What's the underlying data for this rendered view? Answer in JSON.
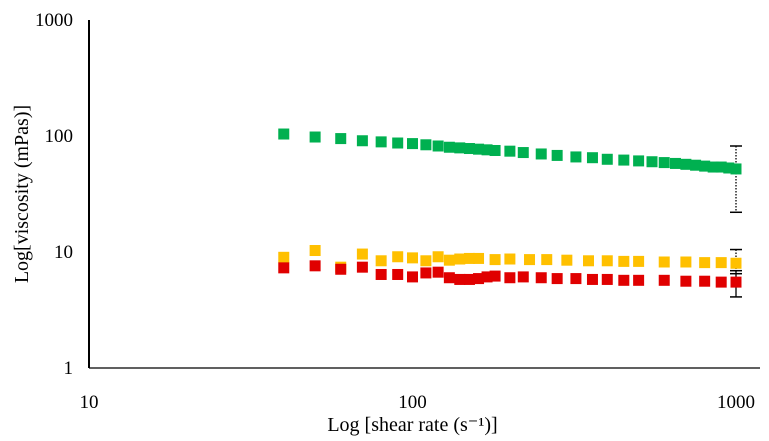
{
  "chart_data": {
    "type": "scatter",
    "title": "",
    "xlabel": "Log [shear rate (s⁻¹)]",
    "ylabel": "Log[viscosity (mPas)]",
    "xscale": "log",
    "yscale": "log",
    "xlim": [
      10,
      1000
    ],
    "ylim": [
      1,
      1000
    ],
    "xticks": [
      10,
      100,
      1000
    ],
    "xtick_labels": [
      "10",
      "100",
      "1000"
    ],
    "yticks": [
      1,
      10,
      100,
      1000
    ],
    "ytick_labels": [
      "1",
      "10",
      "100",
      "1000"
    ],
    "grid": false,
    "legend": "none",
    "series": [
      {
        "color": "#00b050",
        "points": [
          [
            40,
            104
          ],
          [
            50,
            98
          ],
          [
            60,
            95
          ],
          [
            70,
            91
          ],
          [
            80,
            89
          ],
          [
            90,
            87
          ],
          [
            100,
            86
          ],
          [
            110,
            84
          ],
          [
            120,
            82
          ],
          [
            130,
            80
          ],
          [
            140,
            79
          ],
          [
            150,
            78
          ],
          [
            160,
            77
          ],
          [
            170,
            76
          ],
          [
            180,
            75
          ],
          [
            200,
            74
          ],
          [
            220,
            72
          ],
          [
            250,
            70
          ],
          [
            280,
            68
          ],
          [
            320,
            66
          ],
          [
            360,
            65
          ],
          [
            400,
            63
          ],
          [
            450,
            62
          ],
          [
            500,
            61
          ],
          [
            550,
            60
          ],
          [
            600,
            59
          ],
          [
            650,
            58
          ],
          [
            700,
            57
          ],
          [
            750,
            56
          ],
          [
            800,
            55
          ],
          [
            850,
            54
          ],
          [
            900,
            54
          ],
          [
            950,
            53
          ],
          [
            1000,
            52
          ]
        ],
        "error_bars": [
          {
            "x": 1000,
            "low": 22,
            "high": 82,
            "style": "dotted"
          }
        ]
      },
      {
        "color": "#ffc000",
        "points": [
          [
            40,
            9.0
          ],
          [
            50,
            10.3
          ],
          [
            60,
            7.4
          ],
          [
            70,
            9.6
          ],
          [
            80,
            8.4
          ],
          [
            90,
            9.1
          ],
          [
            100,
            8.9
          ],
          [
            110,
            8.4
          ],
          [
            120,
            9.1
          ],
          [
            130,
            8.5
          ],
          [
            140,
            8.7
          ],
          [
            150,
            8.8
          ],
          [
            160,
            8.8
          ],
          [
            180,
            8.6
          ],
          [
            200,
            8.7
          ],
          [
            230,
            8.6
          ],
          [
            260,
            8.6
          ],
          [
            300,
            8.5
          ],
          [
            350,
            8.4
          ],
          [
            400,
            8.4
          ],
          [
            450,
            8.3
          ],
          [
            500,
            8.3
          ],
          [
            600,
            8.2
          ],
          [
            700,
            8.2
          ],
          [
            800,
            8.1
          ],
          [
            900,
            8.1
          ],
          [
            1000,
            8.0
          ]
        ],
        "error_bars": [
          {
            "x": 1000,
            "low": 6.5,
            "high": 10.5,
            "style": "dotted"
          }
        ]
      },
      {
        "color": "#e00000",
        "points": [
          [
            40,
            7.3
          ],
          [
            50,
            7.6
          ],
          [
            60,
            7.1
          ],
          [
            70,
            7.4
          ],
          [
            80,
            6.4
          ],
          [
            90,
            6.4
          ],
          [
            100,
            6.1
          ],
          [
            110,
            6.6
          ],
          [
            120,
            6.7
          ],
          [
            130,
            6.0
          ],
          [
            140,
            5.8
          ],
          [
            150,
            5.8
          ],
          [
            160,
            5.9
          ],
          [
            170,
            6.1
          ],
          [
            180,
            6.2
          ],
          [
            200,
            6.0
          ],
          [
            220,
            6.1
          ],
          [
            250,
            6.0
          ],
          [
            280,
            5.9
          ],
          [
            320,
            5.9
          ],
          [
            360,
            5.8
          ],
          [
            400,
            5.8
          ],
          [
            450,
            5.7
          ],
          [
            500,
            5.7
          ],
          [
            600,
            5.7
          ],
          [
            700,
            5.6
          ],
          [
            800,
            5.6
          ],
          [
            900,
            5.5
          ],
          [
            1000,
            5.5
          ]
        ],
        "error_bars": [
          {
            "x": 1000,
            "low": 4.1,
            "high": 6.9,
            "style": "solid"
          }
        ]
      }
    ]
  }
}
